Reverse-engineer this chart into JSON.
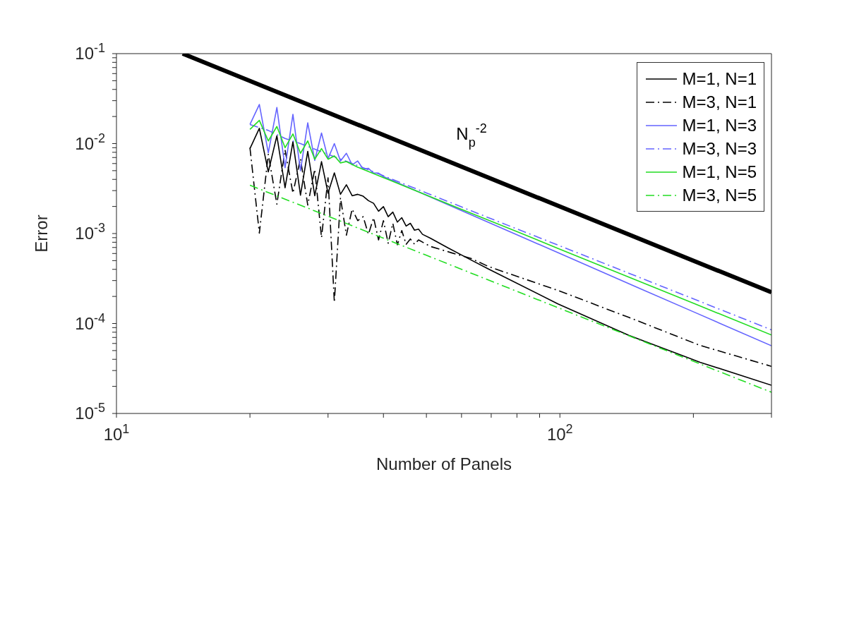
{
  "chart_data": {
    "type": "line",
    "xlabel": "Number of Panels",
    "ylabel": "Error",
    "log": "xy",
    "legend": "top right",
    "grid": false,
    "marker": "none",
    "xlim": [
      10,
      300
    ],
    "ylim": [
      1e-05,
      0.1
    ],
    "xticks": [
      {
        "value": 10,
        "label": "10$^{1}$"
      },
      {
        "value": 20,
        "label": null
      },
      {
        "value": 30,
        "label": null
      },
      {
        "value": 40,
        "label": null
      },
      {
        "value": 50,
        "label": null
      },
      {
        "value": 60,
        "label": null
      },
      {
        "value": 70,
        "label": null
      },
      {
        "value": 80,
        "label": null
      },
      {
        "value": 90,
        "label": null
      },
      {
        "value": 100,
        "label": "10$^{2}$"
      },
      {
        "value": 200,
        "label": null
      },
      {
        "value": 300,
        "label": null
      }
    ],
    "yticks": [
      {
        "value": 1e-05,
        "label": "10$^{-5}$"
      },
      {
        "value": 2e-05,
        "label": null
      },
      {
        "value": 3e-05,
        "label": null
      },
      {
        "value": 4e-05,
        "label": null
      },
      {
        "value": 5e-05,
        "label": null
      },
      {
        "value": 6e-05,
        "label": null
      },
      {
        "value": 7e-05,
        "label": null
      },
      {
        "value": 8e-05,
        "label": null
      },
      {
        "value": 9e-05,
        "label": null
      },
      {
        "value": 0.0001,
        "label": "10$^{-4}$"
      },
      {
        "value": 0.0002,
        "label": null
      },
      {
        "value": 0.0003,
        "label": null
      },
      {
        "value": 0.0004,
        "label": null
      },
      {
        "value": 0.0005,
        "label": null
      },
      {
        "value": 0.0006,
        "label": null
      },
      {
        "value": 0.0007,
        "label": null
      },
      {
        "value": 0.0008,
        "label": null
      },
      {
        "value": 0.0009,
        "label": null
      },
      {
        "value": 0.001,
        "label": "10$^{-3}$"
      },
      {
        "value": 0.002,
        "label": null
      },
      {
        "value": 0.003,
        "label": null
      },
      {
        "value": 0.004,
        "label": null
      },
      {
        "value": 0.005,
        "label": null
      },
      {
        "value": 0.006,
        "label": null
      },
      {
        "value": 0.007,
        "label": null
      },
      {
        "value": 0.008,
        "label": null
      },
      {
        "value": 0.009,
        "label": null
      },
      {
        "value": 0.01,
        "label": "10$^{-2}$"
      },
      {
        "value": 0.02,
        "label": null
      },
      {
        "value": 0.03,
        "label": null
      },
      {
        "value": 0.04,
        "label": null
      },
      {
        "value": 0.05,
        "label": null
      },
      {
        "value": 0.06,
        "label": null
      },
      {
        "value": 0.07,
        "label": null
      },
      {
        "value": 0.08,
        "label": null
      },
      {
        "value": 0.09,
        "label": null
      },
      {
        "value": 0.1,
        "label": "10$^{-1}$"
      }
    ],
    "annotations": [
      "N$_{p}$$^{-2}$"
    ],
    "series": [
      {
        "type": "line",
        "color": "#000000",
        "line_style": "solid",
        "x": [
          14.1,
          300
        ],
        "values": [
          0.1,
          0.000222
        ]
      },
      {
        "name": "M=1, N=1",
        "color": "#000000",
        "line_style": "solid",
        "x": [
          20,
          21,
          22,
          23,
          24,
          25,
          26,
          27,
          28,
          29,
          30,
          31,
          32,
          33,
          34,
          35,
          36,
          37,
          38,
          39,
          40,
          41,
          42,
          43,
          44,
          45,
          46,
          47,
          48,
          49,
          51,
          56,
          62,
          69,
          99,
          143,
          207,
          300
        ],
        "values": [
          0.0088,
          0.0148,
          0.00485,
          0.0122,
          0.00323,
          0.0105,
          0.00267,
          0.0082,
          0.00263,
          0.0063,
          0.00281,
          0.00473,
          0.00273,
          0.00348,
          0.00263,
          0.00273,
          0.0026,
          0.00232,
          0.00217,
          0.00177,
          0.00199,
          0.00154,
          0.00173,
          0.00134,
          0.0015,
          0.00121,
          0.0013,
          0.00109,
          0.00112,
          0.00098,
          0.00089,
          0.00069,
          0.00053,
          0.000403,
          0.000165,
          7.38e-05,
          3.71e-05,
          2.06e-05
        ]
      },
      {
        "name": "M=3, N=1",
        "color": "#000000",
        "line_style": "dashed",
        "x": [
          20,
          21,
          22,
          23,
          24,
          25,
          26,
          27,
          28,
          29,
          30,
          31,
          32,
          33,
          34,
          35,
          36,
          37,
          38,
          39,
          40,
          41,
          42,
          43,
          44,
          45,
          46,
          47,
          48,
          51,
          57,
          63,
          69,
          99,
          143,
          207,
          300
        ],
        "values": [
          0.009,
          0.00101,
          0.0076,
          0.00212,
          0.0085,
          0.00281,
          0.0068,
          0.00207,
          0.00518,
          0.0009,
          0.00417,
          0.000171,
          0.0025,
          0.00096,
          0.00187,
          0.00139,
          0.00154,
          0.00098,
          0.0015,
          0.00085,
          0.00139,
          0.00078,
          0.0013,
          0.00075,
          0.00108,
          0.00076,
          0.00087,
          0.00076,
          0.00085,
          0.00072,
          0.00061,
          0.00053,
          0.00043,
          0.000233,
          0.000117,
          5.71e-05,
          3.34e-05
        ]
      },
      {
        "name": "M=1, N=3",
        "color": "#6464ff",
        "line_style": "solid",
        "x": [
          20,
          21,
          22,
          23,
          24,
          25,
          26,
          27,
          28,
          29,
          30,
          31,
          32,
          33,
          34,
          35,
          36,
          37,
          38,
          39,
          40,
          45,
          50,
          60,
          80,
          100,
          150,
          200,
          300
        ],
        "values": [
          0.0163,
          0.0272,
          0.0079,
          0.0252,
          0.0054,
          0.0211,
          0.005,
          0.017,
          0.0065,
          0.0131,
          0.0068,
          0.01,
          0.0064,
          0.0078,
          0.0058,
          0.0064,
          0.0052,
          0.0053,
          0.0047,
          0.0047,
          0.0043,
          0.00334,
          0.00266,
          0.0018,
          0.00097,
          0.0006,
          0.00025,
          0.000135,
          5.65e-05
        ]
      },
      {
        "name": "M=3, N=3",
        "color": "#6464ff",
        "line_style": "dashed",
        "x": [
          20,
          22,
          24,
          26,
          29,
          35,
          50,
          70,
          100,
          150,
          200,
          300
        ],
        "values": [
          0.0163,
          0.014,
          0.0114,
          0.01,
          0.0081,
          0.0057,
          0.00283,
          0.00146,
          0.00073,
          0.00033,
          0.000188,
          8.5e-05
        ]
      },
      {
        "name": "M=1, N=5",
        "color": "#22dd22",
        "line_style": "solid",
        "x": [
          20,
          21,
          22,
          23,
          24,
          25,
          26,
          27,
          28,
          29,
          30,
          31,
          32,
          33,
          35,
          40,
          50,
          60,
          80,
          100,
          150,
          200,
          300
        ],
        "values": [
          0.0144,
          0.0181,
          0.0107,
          0.0155,
          0.009,
          0.0128,
          0.0078,
          0.0107,
          0.0067,
          0.0088,
          0.0067,
          0.0073,
          0.0061,
          0.0063,
          0.00547,
          0.00419,
          0.00268,
          0.00186,
          0.00105,
          0.00067,
          0.000298,
          0.000168,
          7.44e-05
        ]
      },
      {
        "name": "M=3, N=5",
        "color": "#22dd22",
        "line_style": "dashed",
        "x": [
          20,
          30,
          50,
          100,
          200,
          300
        ],
        "values": [
          0.00344,
          0.00156,
          0.000573,
          0.000147,
          3.8e-05,
          1.72e-05
        ]
      }
    ]
  }
}
